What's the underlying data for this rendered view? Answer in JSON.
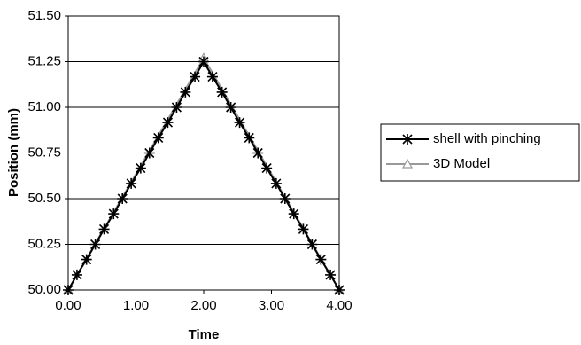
{
  "chart_data": {
    "type": "line",
    "xlabel": "Time",
    "ylabel": "Position (mm)",
    "xlim": [
      0,
      4
    ],
    "ylim": [
      50,
      51.5
    ],
    "xticks": [
      {
        "value": 0,
        "label": "0.00"
      },
      {
        "value": 1,
        "label": "1.00"
      },
      {
        "value": 2,
        "label": "2.00"
      },
      {
        "value": 3,
        "label": "3.00"
      },
      {
        "value": 4,
        "label": "4.00"
      }
    ],
    "yticks": [
      {
        "value": 50,
        "label": "50.00"
      },
      {
        "value": 50.25,
        "label": "50.25"
      },
      {
        "value": 50.5,
        "label": "50.50"
      },
      {
        "value": 50.75,
        "label": "50.75"
      },
      {
        "value": 51,
        "label": "51.00"
      },
      {
        "value": 51.25,
        "label": "51.25"
      },
      {
        "value": 51.5,
        "label": "51.50"
      }
    ],
    "grid": true,
    "legend": "right",
    "series": [
      {
        "name": "shell with pinching",
        "color": "#000000",
        "marker": "star",
        "x": [
          0,
          0.13,
          0.27,
          0.4,
          0.53,
          0.67,
          0.8,
          0.93,
          1.07,
          1.2,
          1.33,
          1.47,
          1.6,
          1.73,
          1.87,
          2.0,
          2.13,
          2.27,
          2.4,
          2.53,
          2.67,
          2.8,
          2.93,
          3.07,
          3.2,
          3.33,
          3.47,
          3.6,
          3.73,
          3.87,
          4.0
        ],
        "values": [
          50,
          50.083,
          50.167,
          50.25,
          50.333,
          50.417,
          50.5,
          50.583,
          50.667,
          50.75,
          50.833,
          50.917,
          51,
          51.083,
          51.167,
          51.25,
          51.167,
          51.083,
          51,
          50.917,
          50.833,
          50.75,
          50.667,
          50.583,
          50.5,
          50.417,
          50.333,
          50.25,
          50.167,
          50.083,
          50
        ]
      },
      {
        "name": "3D Model",
        "color": "#999999",
        "marker": "triangle",
        "x": [
          0,
          2,
          4
        ],
        "values": [
          50,
          51.27,
          50
        ]
      }
    ]
  }
}
